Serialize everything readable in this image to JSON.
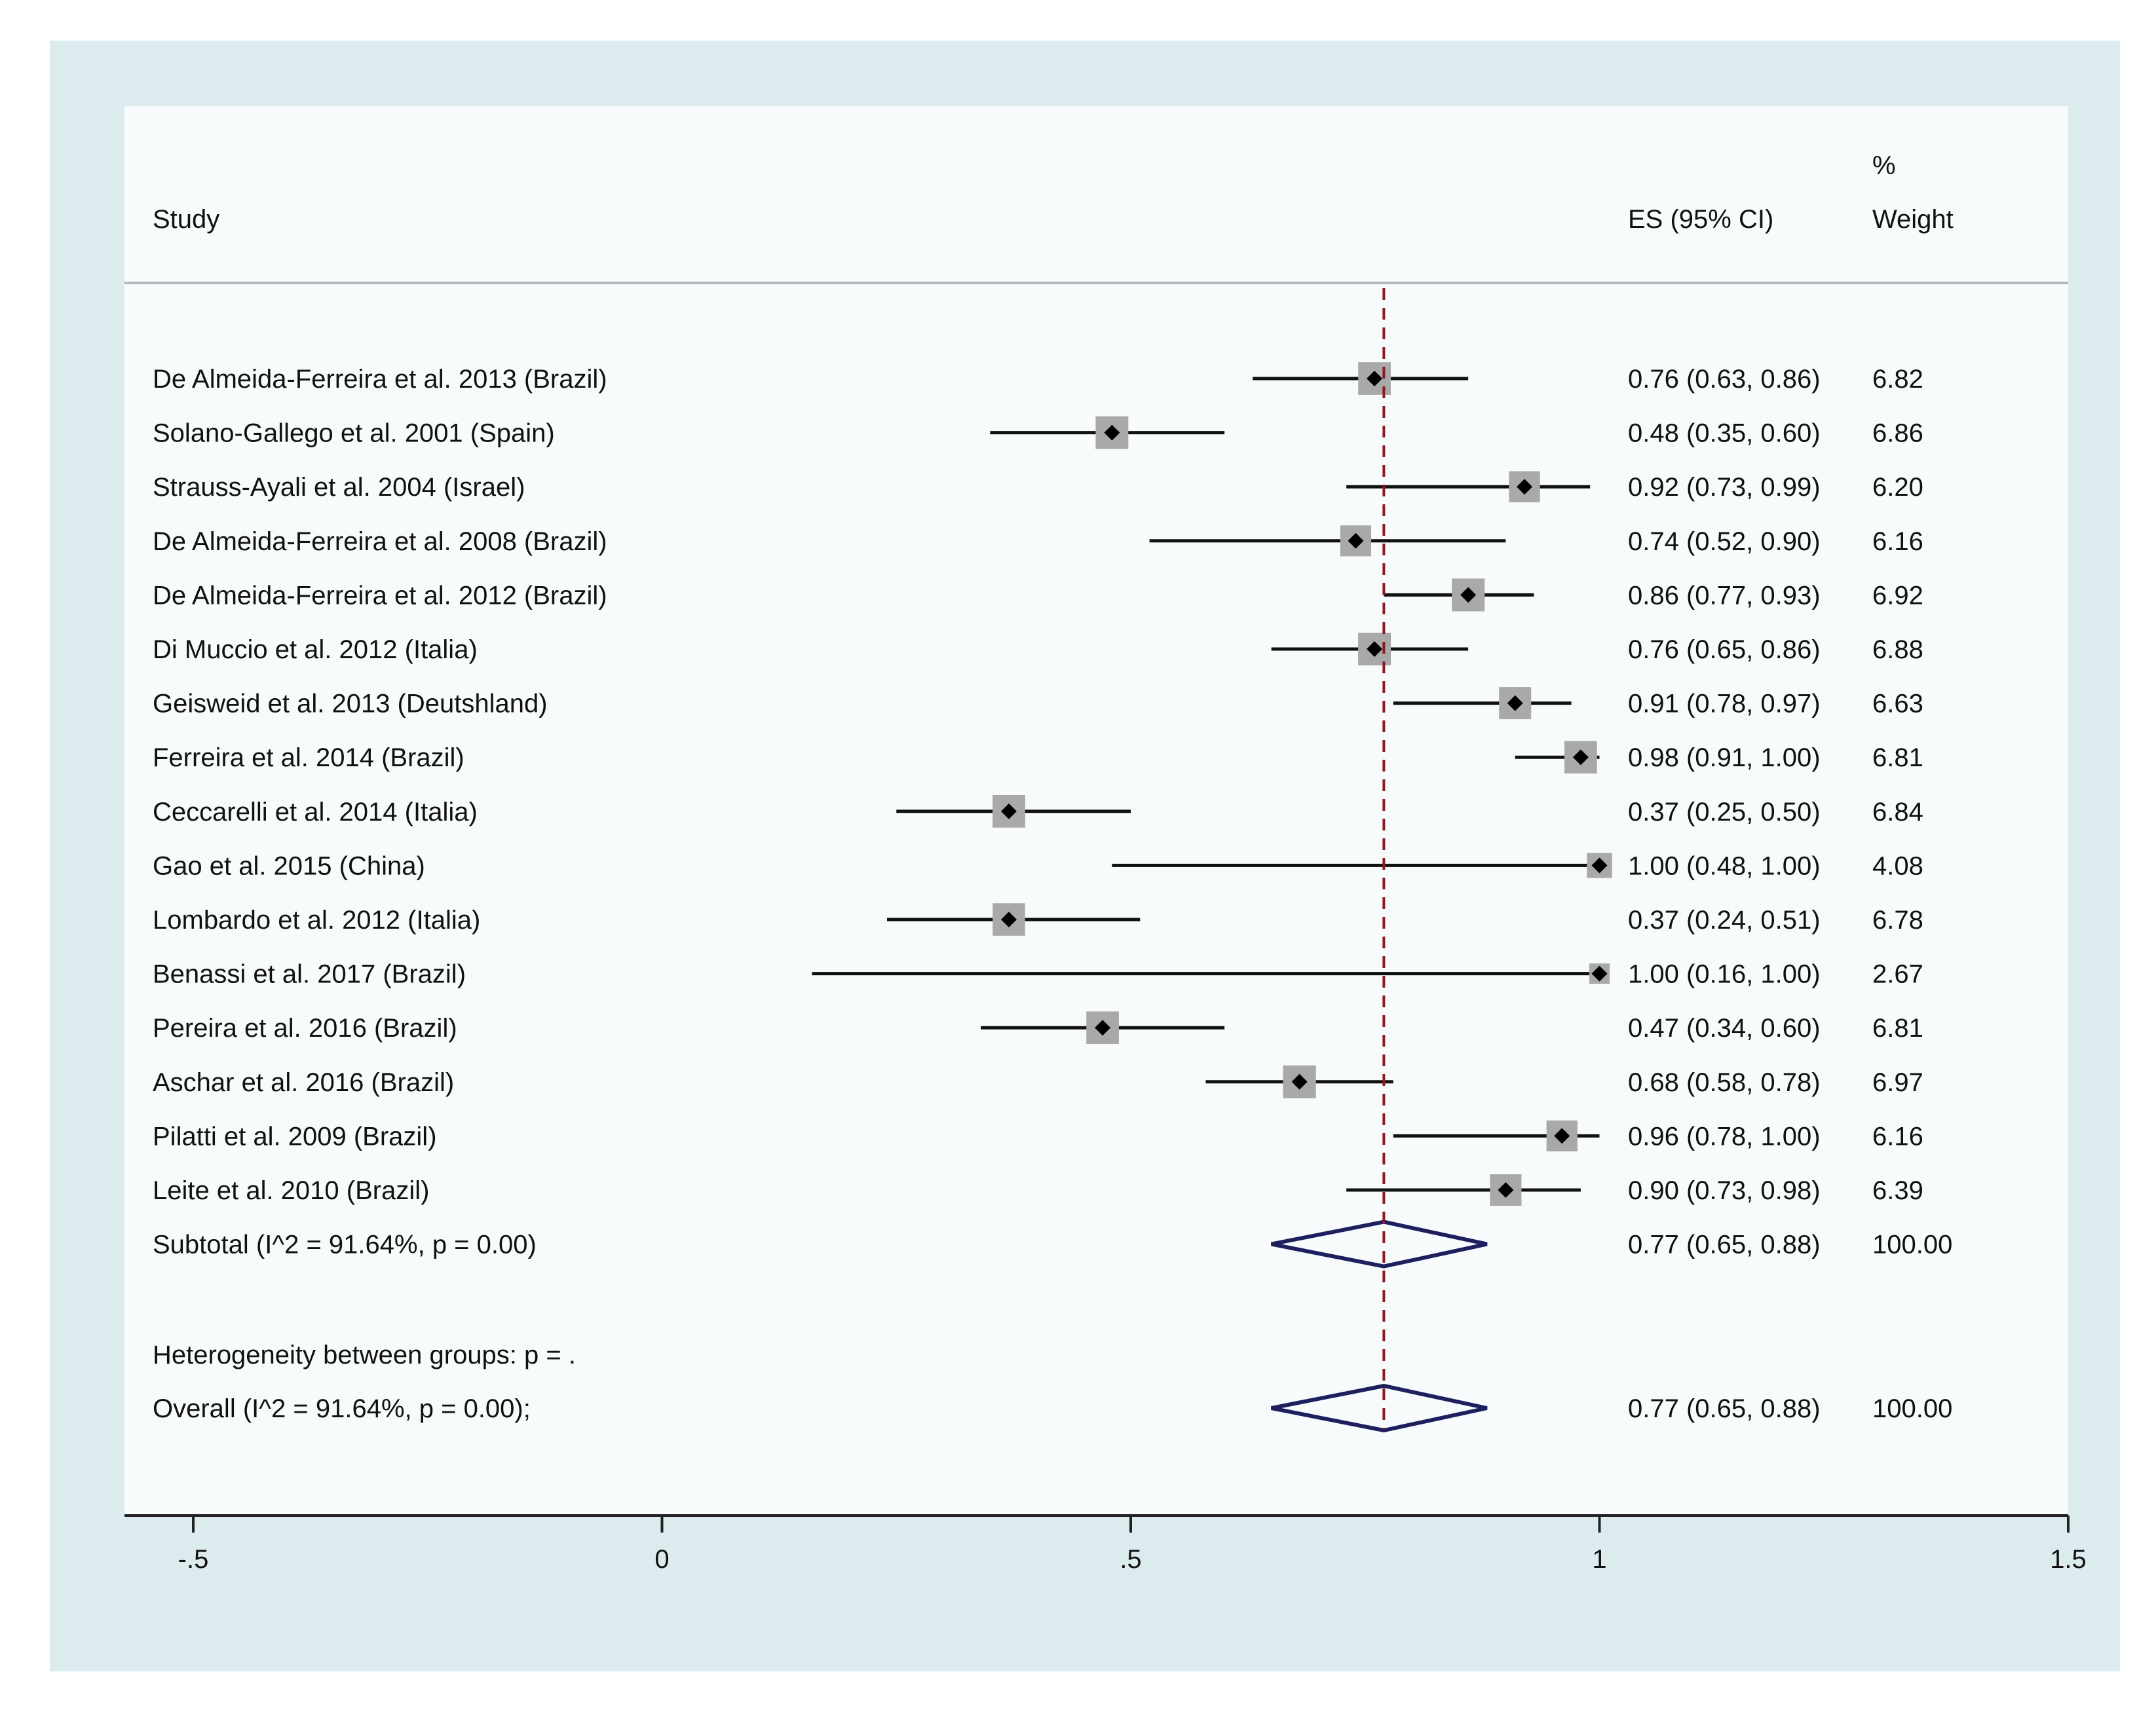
{
  "colors": {
    "outer_bg": "#dcecee",
    "plot_bg": "#f7fbfc",
    "separator": "#b4b7b9",
    "ci_line": "#111111",
    "weight_box": "#a9a9a9",
    "point": "#000000",
    "diamond": "#1d1f5e",
    "ref_line": "#8b1a22",
    "axis": "#222222",
    "text": "#111111"
  },
  "header": {
    "study": "Study",
    "es": "ES (95% CI)",
    "weight_top": "%",
    "weight_bottom": "Weight"
  },
  "chart_data": {
    "type": "forest",
    "xlim": [
      -0.5,
      1.5
    ],
    "xticks": [
      -0.5,
      0,
      0.5,
      1,
      1.5
    ],
    "xtick_labels": [
      "-.5",
      "0",
      ".5",
      "1",
      "1.5"
    ],
    "reference_line": 0.77,
    "studies": [
      {
        "label": "De Almeida-Ferreira et al. 2013 (Brazil)",
        "es": 0.76,
        "lo": 0.63,
        "hi": 0.86,
        "es_text": "0.76 (0.63, 0.86)",
        "weight": 6.82,
        "weight_text": "6.82"
      },
      {
        "label": "Solano-Gallego et al. 2001 (Spain)",
        "es": 0.48,
        "lo": 0.35,
        "hi": 0.6,
        "es_text": "0.48 (0.35, 0.60)",
        "weight": 6.86,
        "weight_text": "6.86"
      },
      {
        "label": "Strauss-Ayali et al. 2004 (Israel)",
        "es": 0.92,
        "lo": 0.73,
        "hi": 0.99,
        "es_text": "0.92 (0.73, 0.99)",
        "weight": 6.2,
        "weight_text": "6.20"
      },
      {
        "label": "De Almeida-Ferreira et al. 2008 (Brazil)",
        "es": 0.74,
        "lo": 0.52,
        "hi": 0.9,
        "es_text": "0.74 (0.52, 0.90)",
        "weight": 6.16,
        "weight_text": "6.16"
      },
      {
        "label": "De Almeida-Ferreira et al. 2012 (Brazil)",
        "es": 0.86,
        "lo": 0.77,
        "hi": 0.93,
        "es_text": "0.86 (0.77, 0.93)",
        "weight": 6.92,
        "weight_text": "6.92"
      },
      {
        "label": "Di Muccio et al. 2012 (Italia)",
        "es": 0.76,
        "lo": 0.65,
        "hi": 0.86,
        "es_text": "0.76 (0.65, 0.86)",
        "weight": 6.88,
        "weight_text": "6.88"
      },
      {
        "label": "Geisweid et al. 2013 (Deutshland)",
        "es": 0.91,
        "lo": 0.78,
        "hi": 0.97,
        "es_text": "0.91 (0.78, 0.97)",
        "weight": 6.63,
        "weight_text": "6.63"
      },
      {
        "label": "Ferreira et al. 2014 (Brazil)",
        "es": 0.98,
        "lo": 0.91,
        "hi": 1.0,
        "es_text": "0.98 (0.91, 1.00)",
        "weight": 6.81,
        "weight_text": "6.81"
      },
      {
        "label": "Ceccarelli et al. 2014 (Italia)",
        "es": 0.37,
        "lo": 0.25,
        "hi": 0.5,
        "es_text": "0.37 (0.25, 0.50)",
        "weight": 6.84,
        "weight_text": "6.84"
      },
      {
        "label": "Gao et al. 2015 (China)",
        "es": 1.0,
        "lo": 0.48,
        "hi": 1.0,
        "es_text": "1.00 (0.48, 1.00)",
        "weight": 4.08,
        "weight_text": "4.08"
      },
      {
        "label": "Lombardo et al. 2012 (Italia)",
        "es": 0.37,
        "lo": 0.24,
        "hi": 0.51,
        "es_text": "0.37 (0.24, 0.51)",
        "weight": 6.78,
        "weight_text": "6.78"
      },
      {
        "label": "Benassi et al. 2017 (Brazil)",
        "es": 1.0,
        "lo": 0.16,
        "hi": 1.0,
        "es_text": "1.00 (0.16, 1.00)",
        "weight": 2.67,
        "weight_text": "2.67"
      },
      {
        "label": "Pereira et al. 2016 (Brazil)",
        "es": 0.47,
        "lo": 0.34,
        "hi": 0.6,
        "es_text": "0.47 (0.34, 0.60)",
        "weight": 6.81,
        "weight_text": "6.81"
      },
      {
        "label": "Aschar et al. 2016 (Brazil)",
        "es": 0.68,
        "lo": 0.58,
        "hi": 0.78,
        "es_text": "0.68 (0.58, 0.78)",
        "weight": 6.97,
        "weight_text": "6.97"
      },
      {
        "label": "Pilatti et al. 2009 (Brazil)",
        "es": 0.96,
        "lo": 0.78,
        "hi": 1.0,
        "es_text": "0.96 (0.78, 1.00)",
        "weight": 6.16,
        "weight_text": "6.16"
      },
      {
        "label": "Leite et al. 2010 (Brazil)",
        "es": 0.9,
        "lo": 0.73,
        "hi": 0.98,
        "es_text": "0.90 (0.73, 0.98)",
        "weight": 6.39,
        "weight_text": "6.39"
      }
    ],
    "subtotal": {
      "label": "Subtotal  (I^2 = 91.64%, p = 0.00)",
      "es": 0.77,
      "lo": 0.65,
      "hi": 0.88,
      "es_text": "0.77 (0.65, 0.88)",
      "weight_text": "100.00"
    },
    "heterogeneity": "Heterogeneity between groups: p = .",
    "overall": {
      "label": "Overall  (I^2 = 91.64%, p = 0.00);",
      "es": 0.77,
      "lo": 0.65,
      "hi": 0.88,
      "es_text": "0.77 (0.65, 0.88)",
      "weight_text": "100.00"
    }
  }
}
